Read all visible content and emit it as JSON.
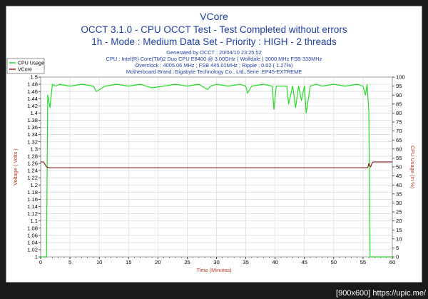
{
  "header": {
    "title": "VCore",
    "line2": "OCCT 3.1.0 - CPU OCCT Test - Test Completed without errors",
    "line3": "1h - Mode : Medium Data Set - Priority : HIGH - 2 threads"
  },
  "info": {
    "generated": "Generated by OCCT : 20/04/10 23:25:52",
    "cpu": "CPU : Intel(R) Core(TM)2 Duo CPU E8400 @ 3.00GHz ( Wolfdale ) 3000 MHz FSB 333MHz",
    "overclock": "Overclock : 4005.06 MHz ; FSB 445.01MHz ; Ripple : 0.02 ( 1.27%)",
    "motherboard": "Motherboard Brand :Gigabyte Technology Co., Ltd.,Serie :EP45-EXTREME"
  },
  "watermark": "[900x600] https://upic.me/",
  "colors": {
    "cpu_usage": "#22dd22",
    "vcore": "#8b1a1a",
    "title": "#1f3fa8",
    "axis_label": "#c0392b",
    "border": "#1a1a1a"
  },
  "chart_data": {
    "type": "line",
    "title": "VCore",
    "xlabel": "Time (Minutes)",
    "ylabel_left": "Voltage ( Volts )",
    "ylabel_right": "CPU Usage (in %)",
    "xlim": [
      0,
      60
    ],
    "ylim_left": [
      1.0,
      1.5
    ],
    "ylim_right": [
      0,
      100
    ],
    "x_ticks": [
      "0",
      "5",
      "10",
      "15",
      "20",
      "25",
      "30",
      "35",
      "40",
      "45",
      "50",
      "55",
      "60"
    ],
    "y_left_ticks": [
      "1",
      "1.02",
      "1.04",
      "1.06",
      "1.08",
      "1.1",
      "1.12",
      "1.14",
      "1.16",
      "1.18",
      "1.2",
      "1.22",
      "1.24",
      "1.26",
      "1.28",
      "1.3",
      "1.32",
      "1.34",
      "1.36",
      "1.38",
      "1.4",
      "1.42",
      "1.44",
      "1.46",
      "1.48",
      "1.5"
    ],
    "y_right_ticks": [
      "0",
      "5",
      "10",
      "15",
      "20",
      "25",
      "30",
      "35",
      "40",
      "45",
      "50",
      "55",
      "60",
      "65",
      "70",
      "75",
      "80",
      "85",
      "90",
      "95",
      "100"
    ],
    "grid": true,
    "legend_position": "top-left",
    "series": [
      {
        "name": "CPU Usage",
        "axis": "right",
        "x": [
          0,
          1.0,
          1.2,
          1.6,
          2.0,
          2.6,
          3.2,
          5.0,
          7.0,
          9.0,
          9.5,
          11.0,
          13.0,
          15.0,
          17.0,
          19.0,
          21.0,
          23.0,
          25.0,
          27.0,
          28.5,
          29.0,
          30.0,
          32.0,
          34.0,
          35.0,
          35.3,
          36.0,
          38.0,
          39.5,
          39.8,
          40.2,
          41.0,
          42.0,
          42.3,
          43.0,
          43.5,
          44.0,
          44.5,
          45.0,
          45.3,
          46.0,
          47.0,
          48.0,
          50.0,
          52.0,
          54.0,
          55.0,
          55.4,
          55.7,
          56.0,
          56.2,
          60.0
        ],
        "values": [
          0,
          0,
          90,
          83,
          96,
          95,
          96,
          95,
          96,
          95,
          92,
          95,
          96,
          95,
          96,
          94,
          95,
          96,
          95,
          96,
          93,
          95,
          96,
          95,
          96,
          95,
          91,
          95,
          96,
          95,
          82,
          95,
          95,
          95,
          85,
          95,
          83,
          95,
          87,
          95,
          80,
          95,
          96,
          95,
          96,
          95,
          96,
          95,
          90,
          96,
          80,
          0,
          0
        ]
      },
      {
        "name": "VCore",
        "axis": "left",
        "x": [
          0,
          0.5,
          1.0,
          1.5,
          5,
          10,
          15,
          20,
          25,
          30,
          35,
          40,
          45,
          50,
          55,
          55.8,
          56.0,
          56.3,
          56.6,
          57.0,
          60.0
        ],
        "values": [
          1.264,
          1.264,
          1.25,
          1.248,
          1.248,
          1.248,
          1.248,
          1.248,
          1.248,
          1.248,
          1.248,
          1.248,
          1.248,
          1.248,
          1.248,
          1.248,
          1.26,
          1.25,
          1.263,
          1.264,
          1.264
        ]
      }
    ]
  }
}
